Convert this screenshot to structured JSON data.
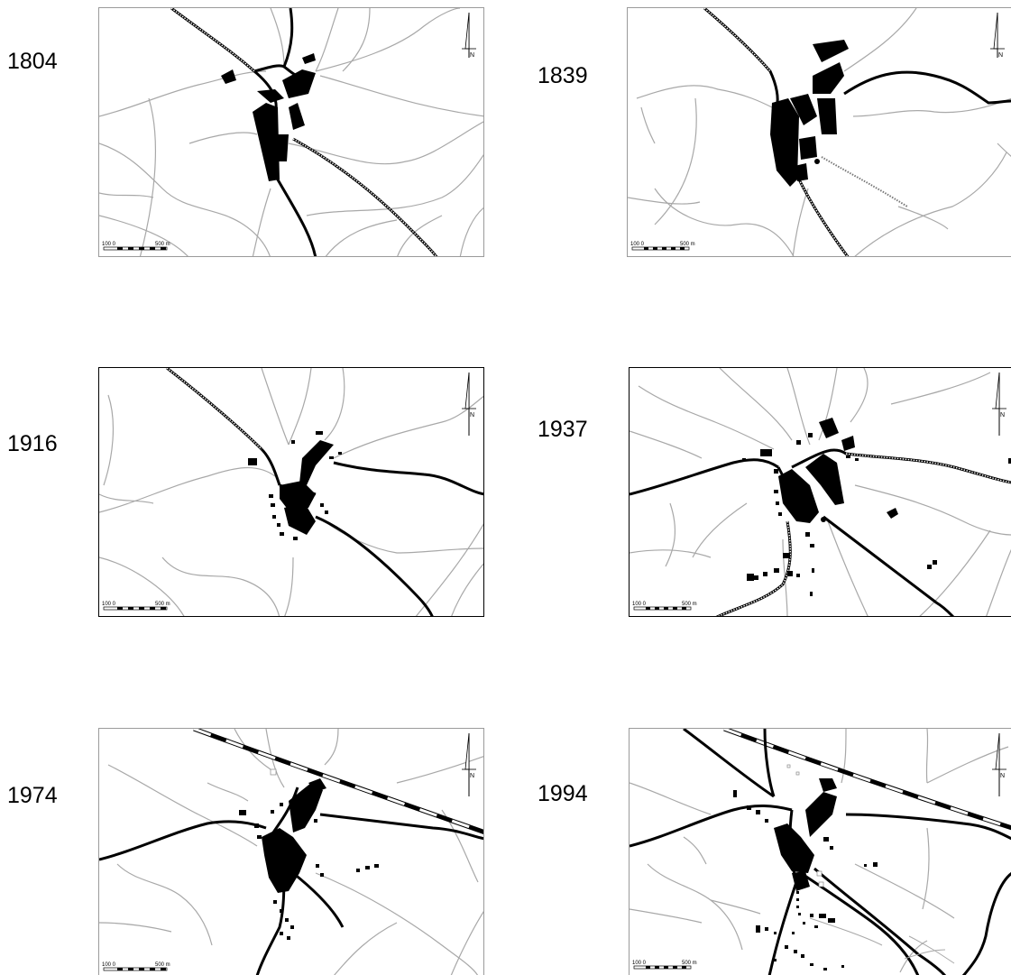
{
  "panels": [
    {
      "year": "1804",
      "scale": {
        "left": "100 0",
        "right": "500 m"
      },
      "north": "N"
    },
    {
      "year": "1839",
      "scale": {
        "left": "100 0",
        "right": "500 m"
      },
      "north": "N"
    },
    {
      "year": "1916",
      "scale": {
        "left": "100 0",
        "right": "500 m"
      },
      "north": "N"
    },
    {
      "year": "1937",
      "scale": {
        "left": "100 0",
        "right": "500 m"
      },
      "north": "N"
    },
    {
      "year": "1974",
      "scale": {
        "left": "100 0",
        "right": "500 m"
      },
      "north": "N"
    },
    {
      "year": "1994",
      "scale": {
        "left": "100 0",
        "right": "500 m"
      },
      "north": "N"
    }
  ],
  "colors": {
    "built_area": "#000000",
    "path": "#a8a8a8",
    "frame": "#9a9a9a"
  }
}
